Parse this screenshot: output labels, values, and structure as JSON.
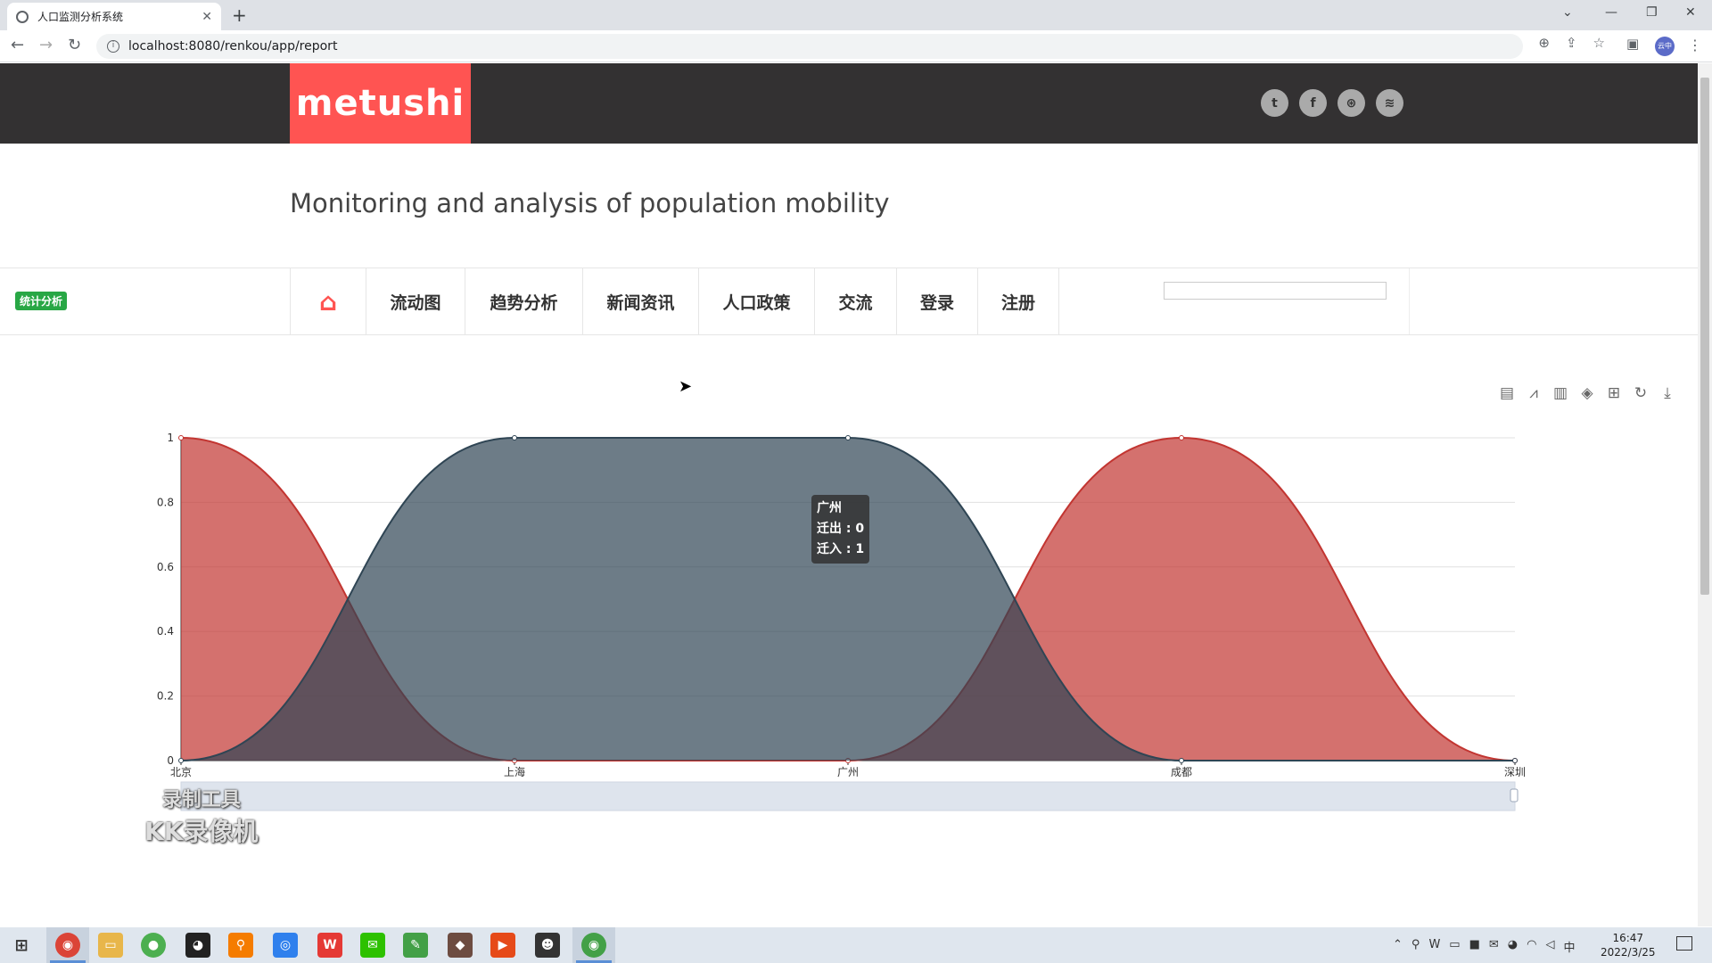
{
  "browser": {
    "tab_title": "人口监测分析系统",
    "url": "localhost:8080/renkou/app/report",
    "profile_label": "云中"
  },
  "site": {
    "logo": "metushi",
    "subtitle": "Monitoring and analysis of population mobility",
    "social_icons": [
      "twitter-icon",
      "facebook-icon",
      "dribbble-icon",
      "rss-icon"
    ],
    "nav": [
      {
        "label": "流动图"
      },
      {
        "label": "趋势分析"
      },
      {
        "label": "新闻资讯"
      },
      {
        "label": "人口政策"
      },
      {
        "label": "交流"
      },
      {
        "label": "登录"
      },
      {
        "label": "注册"
      }
    ],
    "badge": "统计分析",
    "colors": {
      "brand": "#ff5452",
      "header": "#333132",
      "badge": "#28a745"
    }
  },
  "chart_data": {
    "type": "area",
    "categories": [
      "北京",
      "上海",
      "广州",
      "成都",
      "深圳"
    ],
    "ylim": [
      0,
      1
    ],
    "yticks": [
      "0",
      "0.2",
      "0.4",
      "0.6",
      "0.8",
      "1"
    ],
    "smooth": true,
    "grid": true,
    "series": [
      {
        "name": "迁出",
        "values": [
          1,
          0,
          0,
          1,
          0
        ],
        "color": "#c23531"
      },
      {
        "name": "迁入",
        "values": [
          0,
          1,
          1,
          0,
          0
        ],
        "color": "#2f4554"
      }
    ],
    "tooltip": {
      "title": "广州",
      "lines": [
        "迁出 : 0",
        "迁入 : 1"
      ]
    }
  },
  "watermark": {
    "line1": "录制工具",
    "line2": "KK录像机"
  },
  "taskbar": {
    "time": "16:47",
    "date": "2022/3/25",
    "ime": "中"
  }
}
